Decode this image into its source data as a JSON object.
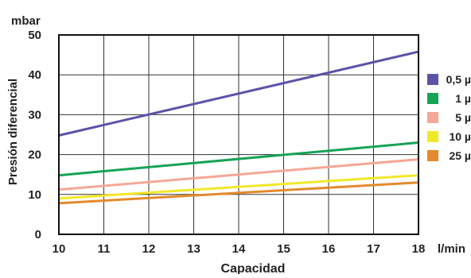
{
  "chart_data": {
    "type": "line",
    "title": "",
    "xlabel": "Capacidad",
    "ylabel": "Presión diferencial",
    "x_unit": "l/min",
    "y_unit": "mbar",
    "xlim": [
      10,
      18
    ],
    "ylim": [
      0,
      50
    ],
    "x_ticks": [
      "10",
      "11",
      "12",
      "13",
      "14",
      "15",
      "16",
      "17",
      "18"
    ],
    "y_ticks": [
      "0",
      "10",
      "20",
      "30",
      "40",
      "50"
    ],
    "grid": true,
    "legend_position": "right",
    "series": [
      {
        "name": "0,5 µ",
        "color": "#5b53a8",
        "x": [
          10,
          18
        ],
        "y": [
          24.8,
          45.8
        ]
      },
      {
        "name": "1 µ",
        "color": "#17a355",
        "x": [
          10,
          18
        ],
        "y": [
          14.8,
          23.0
        ]
      },
      {
        "name": "5 µ",
        "color": "#f4a895",
        "x": [
          10,
          18
        ],
        "y": [
          11.2,
          18.8
        ]
      },
      {
        "name": "10 µ",
        "color": "#f2e82a",
        "x": [
          10,
          18
        ],
        "y": [
          9.0,
          14.8
        ]
      },
      {
        "name": "25 µ",
        "color": "#e38a2c",
        "x": [
          10,
          18
        ],
        "y": [
          7.8,
          13.0
        ]
      }
    ]
  }
}
